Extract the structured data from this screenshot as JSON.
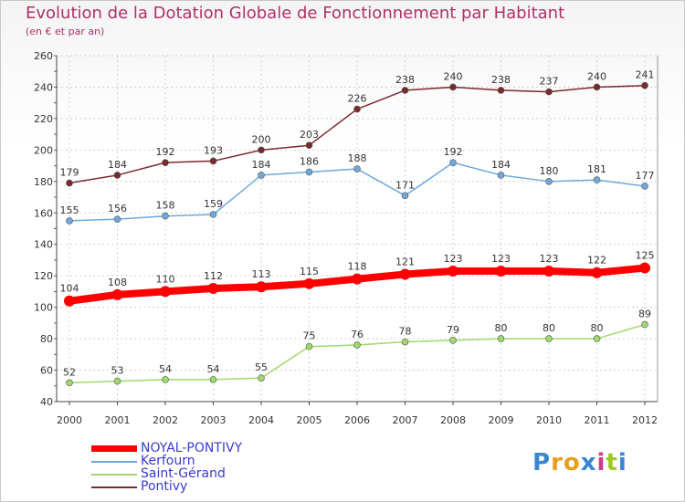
{
  "title": "Evolution de la Dotation Globale de Fonctionnement par Habitant",
  "subtitle": "(en € et par an)",
  "logo": "Proxiti",
  "chart_data": {
    "type": "line",
    "title": "Evolution de la Dotation Globale de Fonctionnement par Habitant",
    "subtitle": "(en € et par an)",
    "xlabel": "",
    "ylabel": "",
    "ylim": [
      40,
      260
    ],
    "yticks": [
      40,
      60,
      80,
      100,
      120,
      140,
      160,
      180,
      200,
      220,
      240,
      260
    ],
    "categories": [
      "2000",
      "2001",
      "2002",
      "2003",
      "2004",
      "2005",
      "2006",
      "2007",
      "2008",
      "2009",
      "2010",
      "2011",
      "2012"
    ],
    "series": [
      {
        "name": "NOYAL-PONTIVY",
        "color": "#ff0000",
        "values": [
          104,
          108,
          110,
          112,
          113,
          115,
          118,
          121,
          123,
          123,
          123,
          122,
          125
        ]
      },
      {
        "name": "Kerfourn",
        "color": "#6fa8dc",
        "values": [
          155,
          156,
          158,
          159,
          184,
          186,
          188,
          171,
          192,
          184,
          180,
          181,
          177
        ]
      },
      {
        "name": "Saint-Gérand",
        "color": "#9fd86b",
        "values": [
          52,
          53,
          54,
          54,
          55,
          75,
          76,
          78,
          79,
          80,
          80,
          80,
          89
        ]
      },
      {
        "name": "Pontivy",
        "color": "#7a2a2a",
        "values": [
          179,
          184,
          192,
          193,
          200,
          203,
          226,
          238,
          240,
          238,
          237,
          240,
          241
        ]
      }
    ],
    "legend_position": "bottom-left",
    "grid": true
  }
}
